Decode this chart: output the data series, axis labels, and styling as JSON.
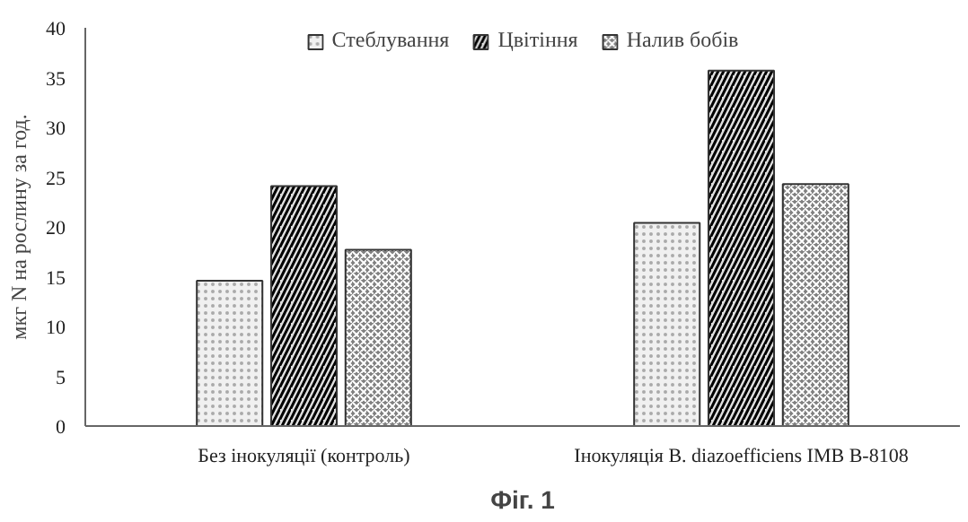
{
  "chart_data": {
    "type": "bar",
    "ylabel": "мкг N на рослину за год.",
    "categories": [
      "Без інокуляції (контроль)",
      "Інокуляція B. diazoefficiens IMB B-8108"
    ],
    "series": [
      {
        "name": "Стеблування",
        "color": "#f0f0f0",
        "values": [
          14.6,
          20.4
        ]
      },
      {
        "name": "Цвітіння",
        "color": "#e0e0e0",
        "values": [
          24.1,
          35.7
        ]
      },
      {
        "name": "Налив бобів",
        "color": "#808080",
        "values": [
          17.7,
          24.3
        ]
      }
    ],
    "ylim": [
      0,
      40
    ],
    "yticks": [
      0,
      5,
      10,
      15,
      20,
      25,
      30,
      35,
      40
    ],
    "grid": false,
    "legend": "top",
    "annotations": [
      "Фіг. 1"
    ]
  }
}
